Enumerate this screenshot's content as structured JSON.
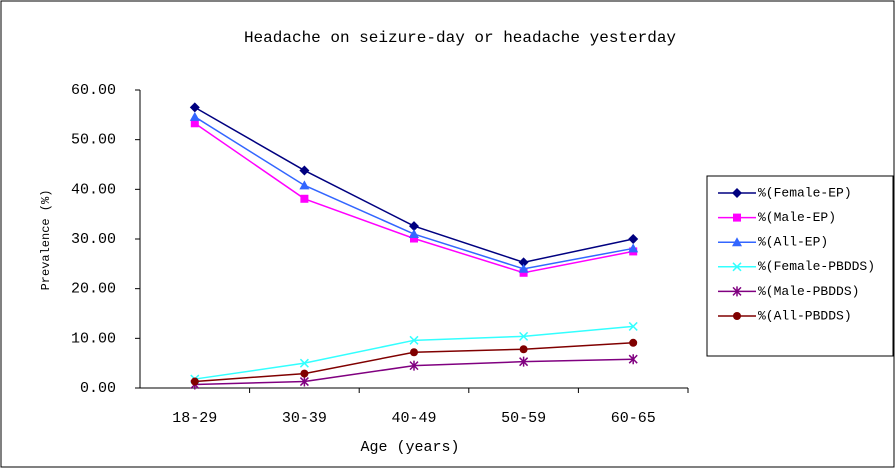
{
  "chart_data": {
    "type": "line",
    "title": "Headache on seizure-day or headache yesterday",
    "x_label": "Age (years)",
    "y_label": "Prevalence (%)",
    "categories": [
      "18-29",
      "30-39",
      "40-49",
      "50-59",
      "60-65"
    ],
    "ylim": [
      0,
      60
    ],
    "yticks": [
      {
        "value": 0,
        "label": "0.00"
      },
      {
        "value": 10,
        "label": "10.00"
      },
      {
        "value": 20,
        "label": "20.00"
      },
      {
        "value": 30,
        "label": "30.00"
      },
      {
        "value": 40,
        "label": "40.00"
      },
      {
        "value": 50,
        "label": "50.00"
      },
      {
        "value": 60,
        "label": "60.00"
      }
    ],
    "grid": false,
    "legend": "right",
    "series": [
      {
        "name": "%(Female-EP)",
        "color": "#000080",
        "marker": "diamond",
        "values": [
          56.5,
          43.8,
          32.6,
          25.3,
          30.0
        ]
      },
      {
        "name": "%(Male-EP)",
        "color": "#ff00ff",
        "marker": "square",
        "values": [
          53.3,
          38.1,
          30.1,
          23.2,
          27.5
        ]
      },
      {
        "name": "%(All-EP)",
        "color": "#3366ff",
        "marker": "triangle",
        "values": [
          54.6,
          40.8,
          31.0,
          24.0,
          28.1
        ]
      },
      {
        "name": "%(Female-PBDDS)",
        "color": "#33ffff",
        "marker": "x",
        "values": [
          1.8,
          5.0,
          9.6,
          10.4,
          12.4
        ]
      },
      {
        "name": "%(Male-PBDDS)",
        "color": "#800080",
        "marker": "star",
        "values": [
          0.7,
          1.3,
          4.5,
          5.3,
          5.8
        ]
      },
      {
        "name": "%(All-PBDDS)",
        "color": "#800000",
        "marker": "circle",
        "values": [
          1.3,
          2.9,
          7.2,
          7.8,
          9.1
        ]
      }
    ]
  }
}
